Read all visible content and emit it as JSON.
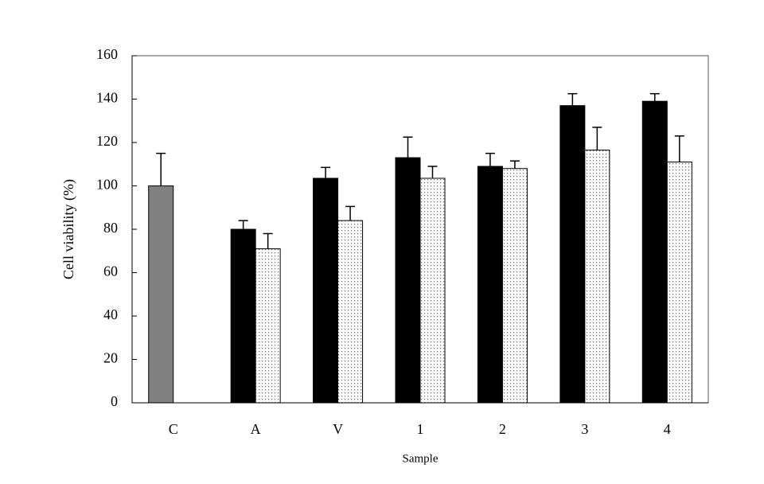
{
  "chart_data": {
    "type": "bar",
    "categories": [
      "C",
      "A",
      "V",
      "1",
      "2",
      "3",
      "4"
    ],
    "series": [
      {
        "color": "#000000",
        "colors": [
          "#808080",
          "#000000",
          "#000000",
          "#000000",
          "#000000",
          "#000000",
          "#000000"
        ],
        "pattern": "solid",
        "values": [
          100,
          80,
          103.5,
          113,
          109,
          137,
          139
        ],
        "errors": [
          15,
          4,
          5,
          9.5,
          6,
          5.5,
          3.5
        ]
      },
      {
        "color": "#000000",
        "pattern": "dots",
        "values": [
          null,
          71,
          84,
          103.5,
          108,
          116.5,
          111
        ],
        "errors": [
          null,
          7,
          6.5,
          5.5,
          3.5,
          10.5,
          12
        ]
      }
    ],
    "ylabel": "Cell viability (%)",
    "xlabel": "Sample",
    "ylim": [
      0,
      160
    ],
    "yticks": [
      0,
      20,
      40,
      60,
      80,
      100,
      120,
      140,
      160
    ],
    "grid": false
  }
}
